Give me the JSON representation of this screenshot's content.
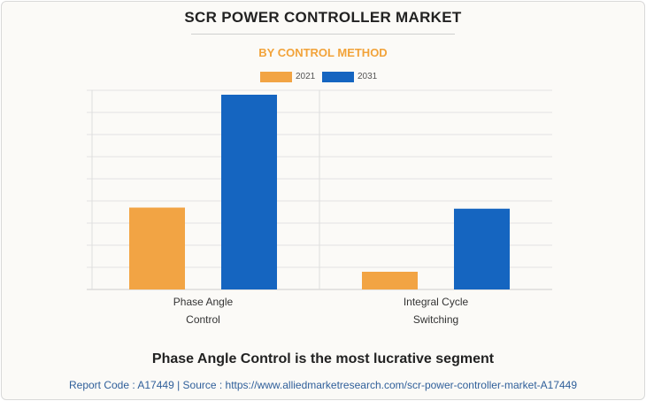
{
  "title": "SCR POWER CONTROLLER MARKET",
  "subtitle": "BY CONTROL METHOD",
  "colors": {
    "2021": "#f2a444",
    "2031": "#1565c0",
    "grid": "#e3e3e3"
  },
  "chart_data": {
    "type": "bar",
    "categories": [
      [
        "Phase Angle",
        "Control"
      ],
      [
        "Integral Cycle",
        "Switching"
      ]
    ],
    "series": [
      {
        "name": "2021",
        "values": [
          3.7,
          0.8
        ]
      },
      {
        "name": "2031",
        "values": [
          8.8,
          3.65
        ]
      }
    ],
    "ylim": [
      0,
      9
    ],
    "gridlines": 9,
    "xlabel": "",
    "ylabel": "",
    "legend": "top-center"
  },
  "footer": {
    "headline": "Phase Angle Control is the most lucrative segment",
    "source": "Report Code : A17449  |  Source : https://www.alliedmarketresearch.com/scr-power-controller-market-A17449"
  }
}
